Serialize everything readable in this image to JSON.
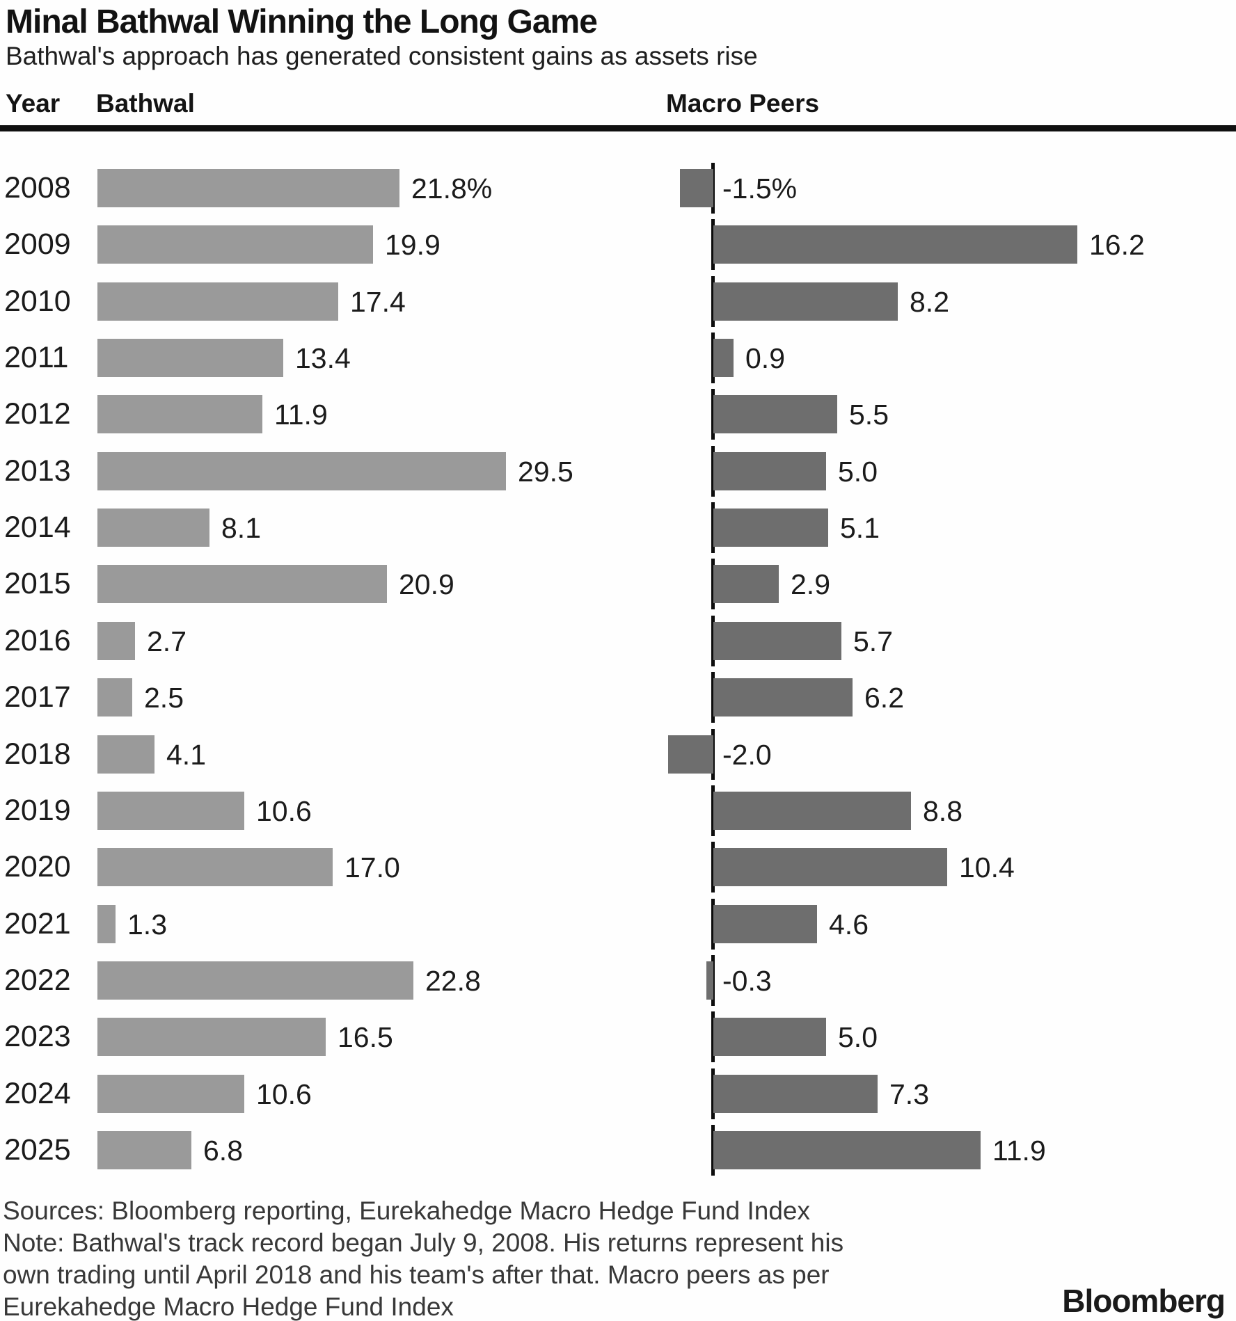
{
  "header": {
    "title": "Minal Bathwal Winning the Long Game",
    "subtitle": "Bathwal's approach has generated consistent gains as assets rise",
    "col_year": "Year",
    "col_left": "Bathwal",
    "col_right": "Macro Peers"
  },
  "chart_data": {
    "type": "bar",
    "orientation": "horizontal",
    "title": "Minal Bathwal Winning the Long Game",
    "subtitle": "Bathwal's approach has generated consistent gains as assets rise",
    "categories": [
      "2008",
      "2009",
      "2010",
      "2011",
      "2012",
      "2013",
      "2014",
      "2015",
      "2016",
      "2017",
      "2018",
      "2019",
      "2020",
      "2021",
      "2022",
      "2023",
      "2024",
      "2025"
    ],
    "series": [
      {
        "name": "Bathwal",
        "values": [
          21.8,
          19.9,
          17.4,
          13.4,
          11.9,
          29.5,
          8.1,
          20.9,
          2.7,
          2.5,
          4.1,
          10.6,
          17.0,
          1.3,
          22.8,
          16.5,
          10.6,
          6.8
        ],
        "labels": [
          "21.8%",
          "19.9",
          "17.4",
          "13.4",
          "11.9",
          "29.5",
          "8.1",
          "20.9",
          "2.7",
          "2.5",
          "4.1",
          "10.6",
          "17.0",
          "1.3",
          "22.8",
          "16.5",
          "10.6",
          "6.8"
        ],
        "color": "#9a9a9a"
      },
      {
        "name": "Macro Peers",
        "values": [
          -1.5,
          16.2,
          8.2,
          0.9,
          5.5,
          5.0,
          5.1,
          2.9,
          5.7,
          6.2,
          -2.0,
          8.8,
          10.4,
          4.6,
          -0.3,
          5.0,
          7.3,
          11.9
        ],
        "labels": [
          "-1.5%",
          "16.2",
          "8.2",
          "0.9",
          "5.5",
          "5.0",
          "5.1",
          "2.9",
          "5.7",
          "6.2",
          "-2.0",
          "8.8",
          "10.4",
          "4.6",
          "-0.3",
          "5.0",
          "7.3",
          "11.9"
        ],
        "color": "#6e6e6e"
      }
    ],
    "value_unit": "percent",
    "first_row_suffix": "%",
    "grid": false,
    "legend_position": "column-headers",
    "axis": {
      "right_column_zero_line": true,
      "left_range": [
        0,
        29.5
      ],
      "right_range": [
        -2.0,
        16.2
      ]
    }
  },
  "colors": {
    "left_bar": "#9a9a9a",
    "right_bar": "#6e6e6e",
    "rule": "#101010",
    "axis_tick": "#0d0d0d",
    "text": "#1a1a1a",
    "footer_text": "#383838"
  },
  "footer": {
    "lines": [
      "Sources: Bloomberg reporting, Eurekahedge Macro Hedge Fund Index",
      "Note: Bathwal's track record began July 9, 2008. His returns represent his",
      "own trading until April 2018 and his team's after that. Macro peers as per",
      "Eurekahedge Macro Hedge Fund Index"
    ],
    "logo": "Bloomberg"
  }
}
